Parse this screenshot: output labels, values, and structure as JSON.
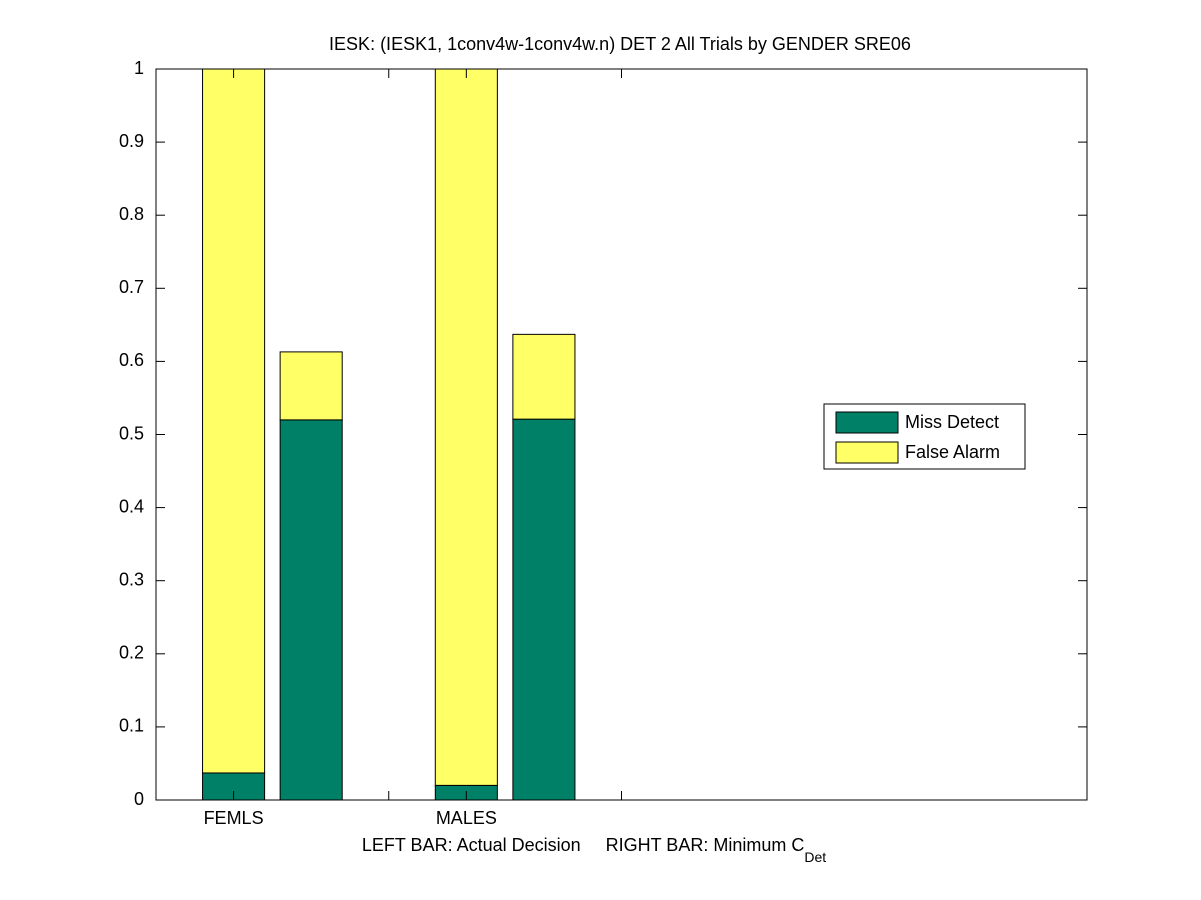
{
  "chart_data": {
    "type": "bar",
    "stacked": true,
    "title": "IESK: (IESK1, 1conv4w-1conv4w.n) DET 2 All Trials by GENDER SRE06",
    "xlabel": "LEFT BAR: Actual Decision     RIGHT BAR: Minimum C",
    "xlabel_subscript": "Det",
    "x": [
      1,
      2,
      4,
      5
    ],
    "series": [
      {
        "name": "Miss Detect",
        "color": "#008066",
        "values": [
          0.037,
          0.52,
          0.02,
          0.521
        ]
      },
      {
        "name": "False Alarm",
        "color": "#ffff66",
        "values": [
          0.963,
          0.093,
          0.98,
          0.116
        ]
      }
    ],
    "xlim": [
      0,
      12
    ],
    "xticks": [
      {
        "value": 1,
        "label": "FEMLS"
      },
      {
        "value": 3,
        "label": null
      },
      {
        "value": 4,
        "label": "MALES"
      },
      {
        "value": 6,
        "label": null
      }
    ],
    "ylim": [
      0,
      1
    ],
    "yticks": [
      0,
      0.1,
      0.2,
      0.3,
      0.4,
      0.5,
      0.6,
      0.7,
      0.8,
      0.9,
      1
    ],
    "legend": "right"
  }
}
